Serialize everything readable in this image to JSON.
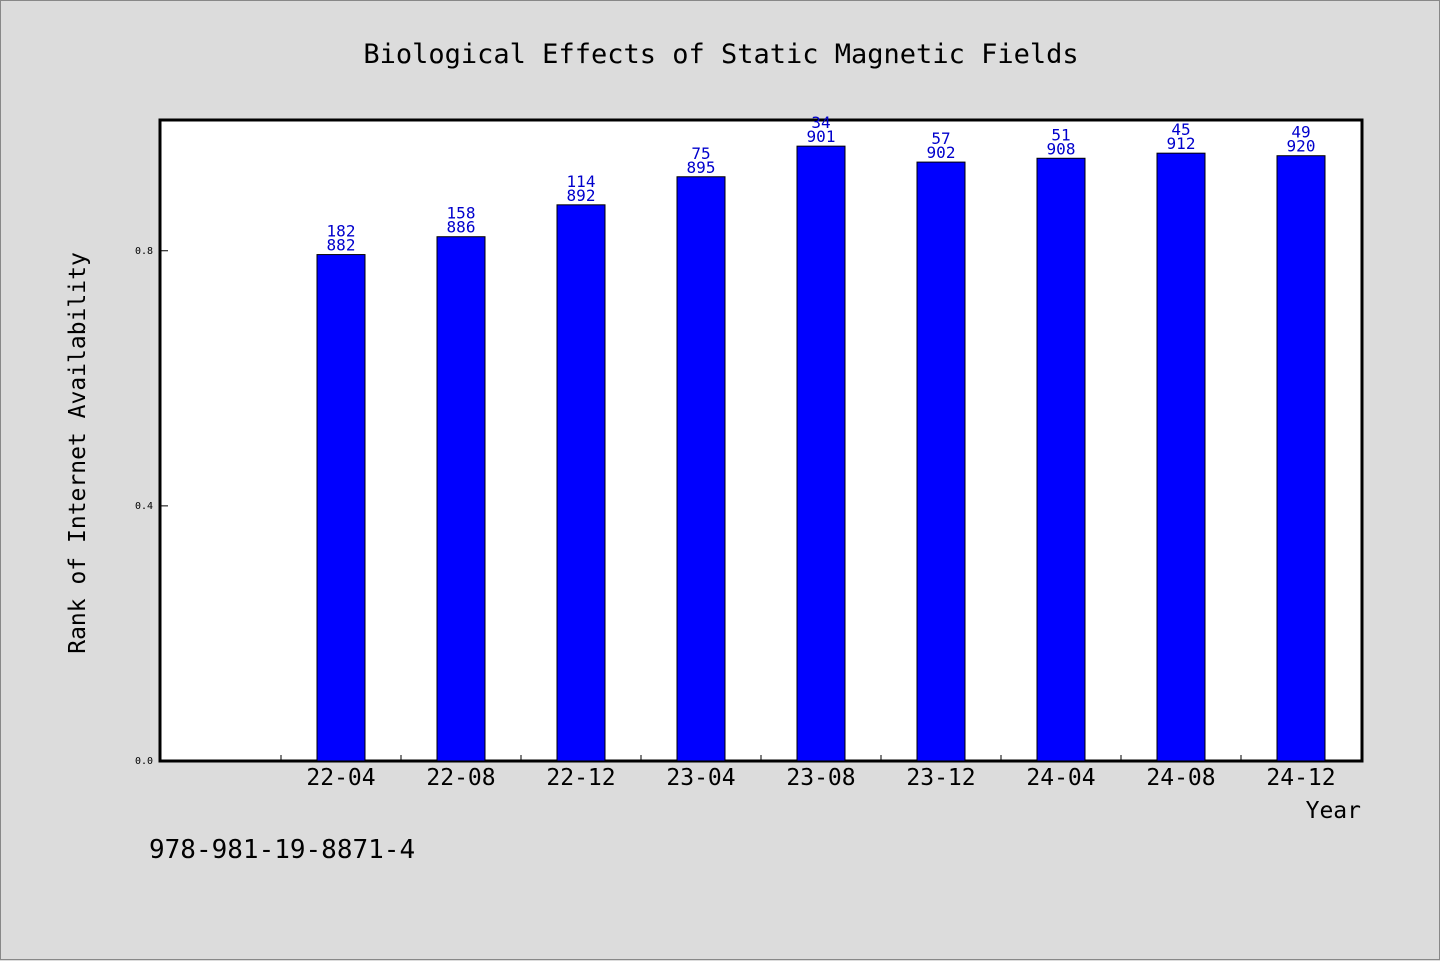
{
  "chart_data": {
    "type": "bar",
    "title": "Biological Effects of Static Magnetic Fields",
    "xlabel": "Year",
    "ylabel": "Rank of Internet Availability",
    "categories": [
      "22-04",
      "22-08",
      "22-12",
      "23-04",
      "23-08",
      "23-12",
      "24-04",
      "24-08",
      "24-12"
    ],
    "values": [
      0.794,
      0.822,
      0.872,
      0.916,
      0.964,
      0.939,
      0.945,
      0.953,
      0.949
    ],
    "labels_top": [
      "182",
      "158",
      "114",
      "75",
      "34",
      "57",
      "51",
      "45",
      "49"
    ],
    "labels_bottom": [
      "882",
      "886",
      "892",
      "895",
      "901",
      "902",
      "908",
      "912",
      "920"
    ],
    "ylim": [
      0,
      1.005
    ],
    "yticks": [
      "0.0",
      "0.4",
      "0.8"
    ],
    "grid": false,
    "colors": {
      "bar": "#0000ff",
      "label": "#0000cc",
      "background": "#dcdcdc",
      "plot": "#ffffff"
    }
  },
  "footer": {
    "isbn": "978-981-19-8871-4"
  }
}
